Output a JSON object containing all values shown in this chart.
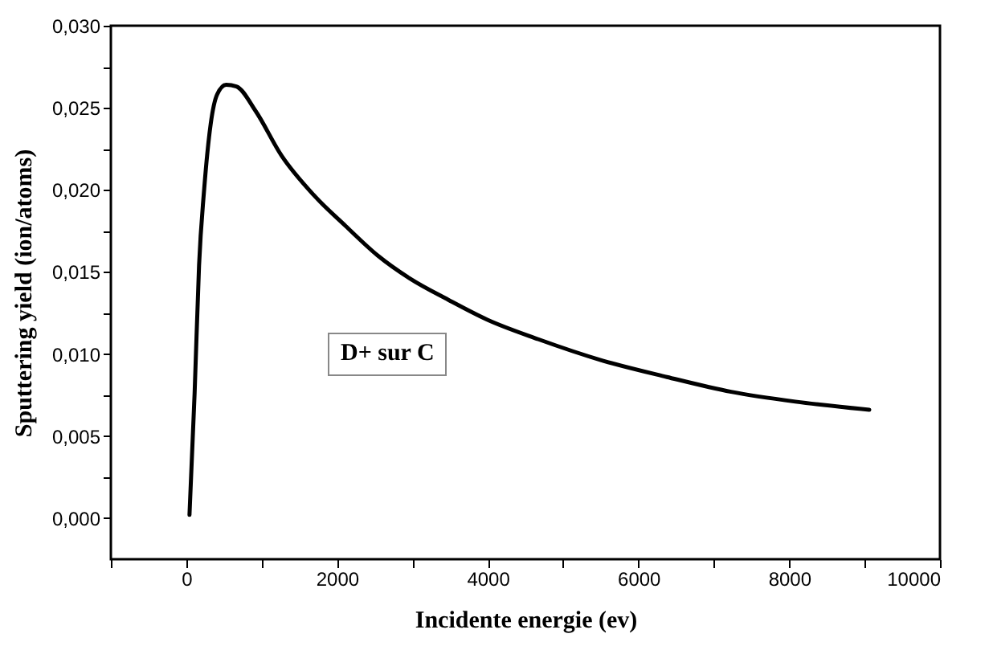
{
  "chart_data": {
    "type": "line",
    "xlabel": "Incidente energie (ev)",
    "ylabel": "Sputtering yield (ion/atoms)",
    "annotations": [
      "D+ sur C"
    ],
    "x": [
      43,
      111,
      170,
      239,
      324,
      409,
      529,
      665,
      921,
      1262,
      1688,
      2114,
      2540,
      2967,
      3478,
      3990,
      4672,
      5524,
      6377,
      7229,
      8082,
      9062
    ],
    "series": [
      {
        "color": "#000000",
        "values": [
          0.0002,
          0.0076,
          0.0154,
          0.0201,
          0.024,
          0.0258,
          0.0264,
          0.0263,
          0.0248,
          0.0221,
          0.0197,
          0.0178,
          0.016,
          0.0146,
          0.0133,
          0.0121,
          0.0109,
          0.0096,
          0.0086,
          0.0077,
          0.0071,
          0.0066
        ]
      }
    ],
    "xlim": [
      -1000,
      10000
    ],
    "xticks": [
      {
        "value": -1000,
        "label": null
      },
      0,
      {
        "value": 1000,
        "label": null
      },
      2000,
      {
        "value": 3000,
        "label": null
      },
      4000,
      {
        "value": 5000,
        "label": null
      },
      6000,
      {
        "value": 7000,
        "label": null
      },
      8000,
      {
        "value": 9000,
        "label": null
      },
      10000
    ],
    "ylim": [
      -0.0025,
      0.03
    ],
    "yticks": [
      {
        "value": 0,
        "label": "0,000"
      },
      {
        "value": 0.0025,
        "label": null
      },
      {
        "value": 0.005,
        "label": "0,005"
      },
      {
        "value": 0.0075,
        "label": null
      },
      {
        "value": 0.01,
        "label": "0,010"
      },
      {
        "value": 0.0125,
        "label": null
      },
      {
        "value": 0.015,
        "label": "0,015"
      },
      {
        "value": 0.0175,
        "label": null
      },
      {
        "value": 0.02,
        "label": "0,020"
      },
      {
        "value": 0.0225,
        "label": null
      },
      {
        "value": 0.025,
        "label": "0,025"
      },
      {
        "value": 0.0275,
        "label": null
      },
      {
        "value": 0.03,
        "label": "0,030"
      }
    ],
    "grid": false,
    "marker": "none",
    "line_style": "solid"
  }
}
